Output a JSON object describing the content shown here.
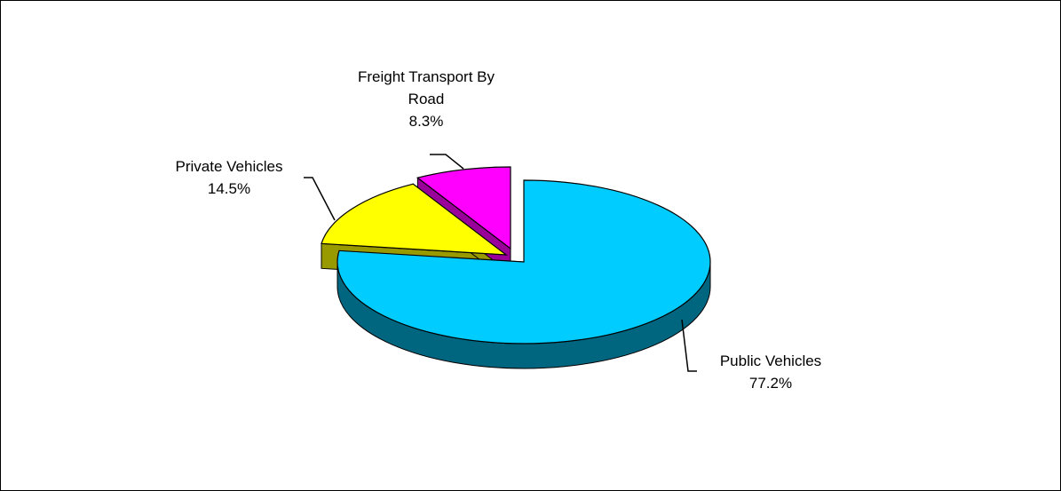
{
  "chart_data": {
    "type": "pie",
    "style": "3d-exploded",
    "slices": [
      {
        "name": "Public Vehicles",
        "value": 77.2,
        "label_lines": [
          "Public Vehicles",
          "77.2%"
        ],
        "color": "#00CCFF",
        "side_color": "#006680"
      },
      {
        "name": "Private Vehicles",
        "value": 14.5,
        "label_lines": [
          "Private Vehicles",
          "14.5%"
        ],
        "color": "#FFFF00",
        "side_color": "#999900"
      },
      {
        "name": "Freight Transport  By Road",
        "value": 8.3,
        "label_lines": [
          "Freight Transport  By",
          "Road",
          "8.3%"
        ],
        "color": "#FF00FF",
        "side_color": "#990099"
      }
    ],
    "title": "",
    "legend": "none"
  }
}
